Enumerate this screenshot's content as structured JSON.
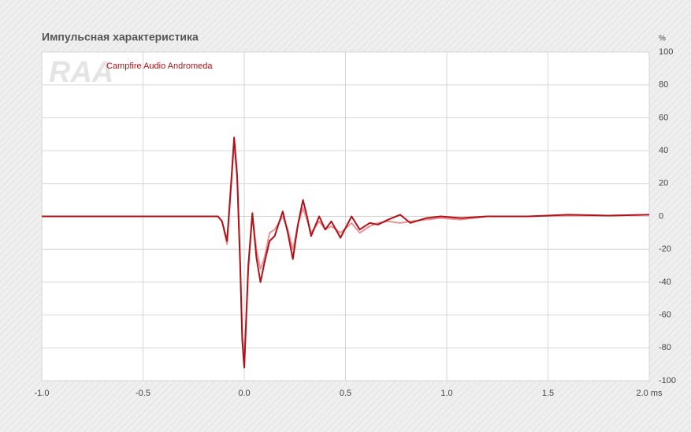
{
  "chart_data": {
    "type": "line",
    "title": "Импульсная характеристика",
    "y_label": "%",
    "watermark": "RAA",
    "x": [
      -1.0,
      -0.5,
      -0.13,
      -0.11,
      -0.085,
      -0.065,
      -0.05,
      -0.035,
      -0.02,
      -0.01,
      0.0,
      0.02,
      0.04,
      0.06,
      0.08,
      0.1,
      0.125,
      0.15,
      0.19,
      0.215,
      0.24,
      0.265,
      0.29,
      0.31,
      0.33,
      0.37,
      0.4,
      0.43,
      0.475,
      0.53,
      0.57,
      0.62,
      0.66,
      0.71,
      0.77,
      0.82,
      0.9,
      0.97,
      1.07,
      1.2,
      1.4,
      1.6,
      1.8,
      2.0
    ],
    "series": [
      {
        "color": "#e8959a",
        "values": [
          0,
          0,
          0,
          -3,
          -17,
          18,
          45,
          22,
          -28,
          -72,
          -90,
          -32,
          0,
          -20,
          -32,
          -25,
          -10,
          -8,
          0,
          -8,
          -20,
          -5,
          5,
          -2,
          -10,
          -3,
          -8,
          -6,
          -10,
          -4,
          -10,
          -6,
          -4,
          -3,
          -4,
          -3,
          -2,
          -1,
          -2,
          0,
          0,
          0.5,
          0.5,
          1
        ]
      },
      {
        "name": "Campfire Audio Andromeda",
        "color": "#b01218",
        "values": [
          0,
          0,
          0,
          -3,
          -15,
          20,
          48,
          25,
          -30,
          -75,
          -92,
          -30,
          2,
          -25,
          -40,
          -28,
          -15,
          -12,
          3,
          -10,
          -26,
          -5,
          10,
          0,
          -12,
          0,
          -8,
          -3,
          -13,
          0,
          -8,
          -4,
          -5,
          -2,
          1,
          -4,
          -1,
          0,
          -1,
          0,
          0,
          1,
          0.5,
          1
        ]
      }
    ],
    "xlim": [
      -1.0,
      2.0
    ],
    "xticks": [
      {
        "value": -1,
        "label": "-1.0"
      },
      {
        "value": -0.5,
        "label": "-0.5"
      },
      {
        "value": 0,
        "label": "0.0"
      },
      {
        "value": 0.5,
        "label": "0.5"
      },
      {
        "value": 1,
        "label": "1.0"
      },
      {
        "value": 1.5,
        "label": "1.5"
      },
      {
        "value": 2,
        "label": "2.0 ms"
      }
    ],
    "ylim": [
      -100,
      100
    ],
    "yticks": [
      100,
      80,
      60,
      40,
      20,
      0,
      -20,
      -40,
      -60,
      -80,
      -100
    ],
    "grid": true
  }
}
